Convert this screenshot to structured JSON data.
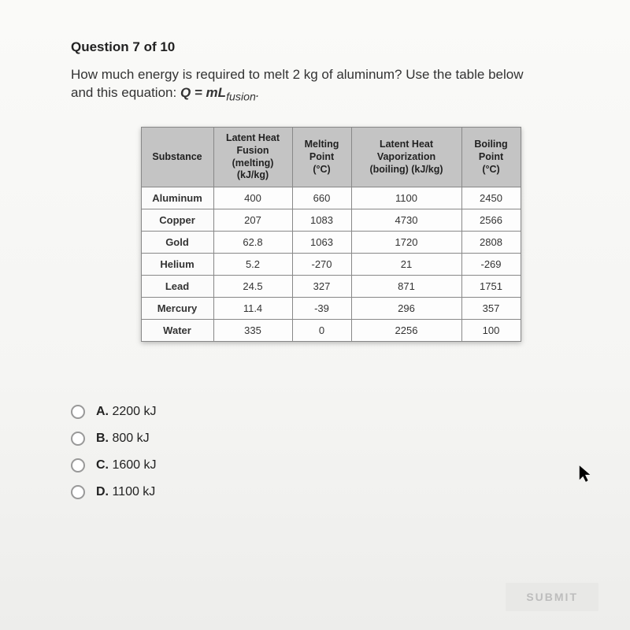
{
  "header": "Question 7 of 10",
  "prompt_line1": "How much energy is required to melt 2 kg of aluminum? Use the table below",
  "prompt_line2_prefix": "and this equation: ",
  "equation_html": "Q = mL",
  "equation_sub": "fusion",
  "equation_suffix": ".",
  "table": {
    "columns": [
      "Substance",
      "Latent Heat Fusion (melting) (kJ/kg)",
      "Melting Point (°C)",
      "Latent Heat Vaporization (boiling) (kJ/kg)",
      "Boiling Point (°C)"
    ],
    "column_breaks": [
      [
        "Substance"
      ],
      [
        "Latent Heat",
        "Fusion",
        "(melting)",
        "(kJ/kg)"
      ],
      [
        "Melting",
        "Point",
        "(°C)"
      ],
      [
        "Latent Heat",
        "Vaporization",
        "(boiling) (kJ/kg)"
      ],
      [
        "Boiling",
        "Point",
        "(°C)"
      ]
    ],
    "rows": [
      [
        "Aluminum",
        "400",
        "660",
        "1100",
        "2450"
      ],
      [
        "Copper",
        "207",
        "1083",
        "4730",
        "2566"
      ],
      [
        "Gold",
        "62.8",
        "1063",
        "1720",
        "2808"
      ],
      [
        "Helium",
        "5.2",
        "-270",
        "21",
        "-269"
      ],
      [
        "Lead",
        "24.5",
        "327",
        "871",
        "1751"
      ],
      [
        "Mercury",
        "11.4",
        "-39",
        "296",
        "357"
      ],
      [
        "Water",
        "335",
        "0",
        "2256",
        "100"
      ]
    ],
    "header_bg": "#c4c4c4",
    "border_color": "#888888",
    "cell_bg": "#fdfdfd",
    "header_fontsize": 12.5,
    "cell_fontsize": 13
  },
  "answers": [
    {
      "letter": "A.",
      "text": "2200 kJ"
    },
    {
      "letter": "B.",
      "text": "800 kJ"
    },
    {
      "letter": "C.",
      "text": "1600 kJ"
    },
    {
      "letter": "D.",
      "text": "1100 kJ"
    }
  ],
  "submit_label": "SUBMIT",
  "colors": {
    "page_bg": "#f0f0ee",
    "text": "#222222",
    "radio_border": "#999999",
    "submit_text": "#bdbdbd",
    "submit_bg": "#e8e8e6"
  }
}
